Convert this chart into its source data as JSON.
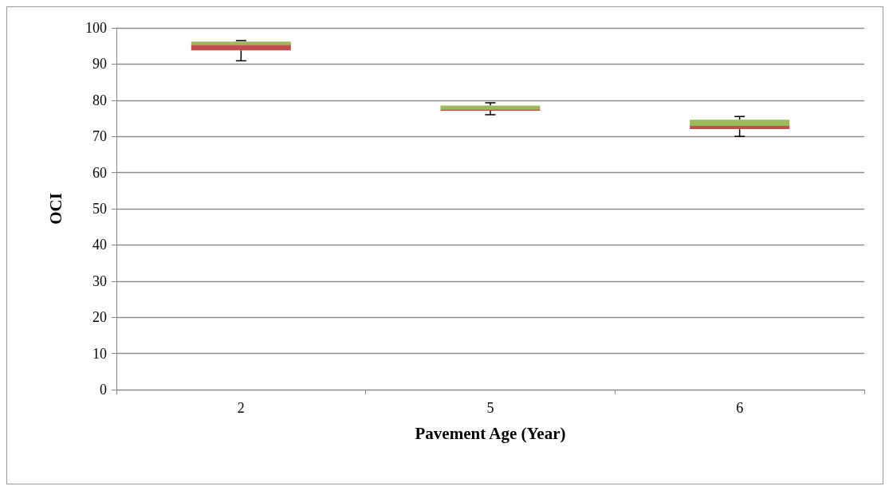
{
  "chart_data": {
    "type": "box",
    "xlabel": "Pavement Age (Year)",
    "ylabel": "OCI",
    "categories": [
      "2",
      "5",
      "6"
    ],
    "series": [
      {
        "color": "#9bbb59",
        "colors": [
          "#c0504d",
          "#c0504d",
          "#c0504d"
        ],
        "boxes": [
          {
            "low": 90.9,
            "q1": 93.8,
            "median": 95.3,
            "q3": 96.2,
            "high": 96.5
          },
          {
            "low": 76.0,
            "q1": 77.1,
            "median": 77.5,
            "q3": 78.5,
            "high": 79.3
          },
          {
            "low": 70.0,
            "q1": 72.0,
            "median": 72.9,
            "q3": 74.6,
            "high": 75.5
          }
        ]
      }
    ],
    "ylim": [
      0,
      100
    ],
    "yticks": [
      0,
      10,
      20,
      30,
      40,
      50,
      60,
      70,
      80,
      90,
      100
    ],
    "grid": "y"
  }
}
